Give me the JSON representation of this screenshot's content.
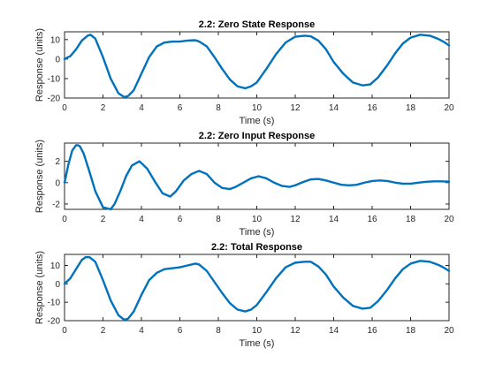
{
  "line_color": "#0072BD",
  "chart_data": [
    {
      "type": "line",
      "title": "2.2: Zero State Response",
      "xlabel": "Time (s)",
      "ylabel": "Response (units)",
      "xlim": [
        0,
        20
      ],
      "ylim": [
        -20,
        14
      ],
      "xticks": [
        0,
        2,
        4,
        6,
        8,
        10,
        12,
        14,
        16,
        18,
        20
      ],
      "yticks": [
        -20,
        -10,
        0,
        10
      ],
      "grid": false,
      "series": [
        {
          "x": [
            0,
            0.3,
            0.6,
            0.9,
            1.2,
            1.35,
            1.6,
            2.0,
            2.4,
            2.8,
            3.1,
            3.3,
            3.6,
            4.0,
            4.4,
            4.8,
            5.2,
            5.6,
            6.0,
            6.4,
            6.8,
            7.0,
            7.4,
            7.8,
            8.2,
            8.6,
            9.0,
            9.4,
            9.7,
            10.0,
            10.5,
            11.0,
            11.5,
            12.0,
            12.5,
            12.8,
            13.2,
            13.6,
            14.0,
            14.5,
            15.0,
            15.5,
            15.9,
            16.3,
            16.8,
            17.2,
            17.6,
            18.0,
            18.5,
            19.0,
            19.4,
            19.7,
            20.0
          ],
          "y": [
            0,
            1.5,
            5,
            9.5,
            12,
            12.5,
            10.5,
            1,
            -10,
            -17.5,
            -19.5,
            -19,
            -16,
            -7.5,
            1,
            6.5,
            8.5,
            9,
            9,
            9.5,
            9.7,
            9,
            6.5,
            1,
            -5,
            -10.5,
            -14,
            -15,
            -14,
            -12,
            -5,
            2.5,
            8.5,
            11.5,
            12,
            11.7,
            9.5,
            5,
            -1.5,
            -7.5,
            -12,
            -13.5,
            -13,
            -9.5,
            -3,
            3,
            8,
            11,
            12.5,
            12,
            10.5,
            9,
            7
          ]
        }
      ]
    },
    {
      "type": "line",
      "title": "2.2: Zero Input Response",
      "xlabel": "Time (s)",
      "ylabel": "Response (units)",
      "xlim": [
        0,
        20
      ],
      "ylim": [
        -2.5,
        3.7
      ],
      "xticks": [
        0,
        2,
        4,
        6,
        8,
        10,
        12,
        14,
        16,
        18,
        20
      ],
      "yticks": [
        -2,
        0,
        2
      ],
      "grid": false,
      "series": [
        {
          "x": [
            0,
            0.2,
            0.4,
            0.6,
            0.7,
            0.8,
            1.0,
            1.3,
            1.6,
            2.0,
            2.4,
            2.6,
            2.9,
            3.2,
            3.5,
            3.9,
            4.3,
            4.7,
            5.1,
            5.5,
            5.8,
            6.2,
            6.6,
            7.0,
            7.4,
            7.8,
            8.2,
            8.6,
            8.9,
            9.3,
            9.7,
            10.1,
            10.5,
            10.9,
            11.3,
            11.7,
            12.0,
            12.4,
            12.8,
            13.2,
            13.6,
            14.0,
            14.4,
            14.8,
            15.2,
            15.6,
            16.0,
            16.4,
            16.8,
            17.2,
            17.6,
            18.0,
            18.4,
            18.8,
            19.2,
            19.6,
            20.0
          ],
          "y": [
            0,
            1.7,
            3.0,
            3.5,
            3.5,
            3.4,
            2.7,
            1.0,
            -0.8,
            -2.3,
            -2.5,
            -2.0,
            -0.8,
            0.6,
            1.6,
            2.0,
            1.3,
            0.1,
            -1.0,
            -1.3,
            -0.8,
            0.2,
            0.8,
            1.1,
            0.8,
            0.0,
            -0.5,
            -0.6,
            -0.4,
            0.0,
            0.4,
            0.6,
            0.4,
            0.0,
            -0.3,
            -0.4,
            -0.25,
            0.05,
            0.3,
            0.35,
            0.2,
            0.0,
            -0.2,
            -0.25,
            -0.2,
            0.0,
            0.15,
            0.2,
            0.15,
            0.0,
            -0.1,
            -0.1,
            0.0,
            0.08,
            0.12,
            0.12,
            0.1
          ]
        }
      ]
    },
    {
      "type": "line",
      "title": "2.2: Total Response",
      "xlabel": "Time (s)",
      "ylabel": "Response (units)",
      "xlim": [
        0,
        20
      ],
      "ylim": [
        -20,
        16
      ],
      "xticks": [
        0,
        2,
        4,
        6,
        8,
        10,
        12,
        14,
        16,
        18,
        20
      ],
      "yticks": [
        -20,
        -10,
        0,
        10
      ],
      "grid": false,
      "series": [
        {
          "x": [
            0,
            0.3,
            0.6,
            0.9,
            1.1,
            1.3,
            1.6,
            2.0,
            2.4,
            2.8,
            3.1,
            3.3,
            3.6,
            4.0,
            4.4,
            4.8,
            5.2,
            5.6,
            6.0,
            6.4,
            6.8,
            7.0,
            7.4,
            7.8,
            8.2,
            8.6,
            9.0,
            9.4,
            9.7,
            10.0,
            10.5,
            11.0,
            11.5,
            12.0,
            12.5,
            12.8,
            13.2,
            13.6,
            14.0,
            14.5,
            15.0,
            15.5,
            15.9,
            16.3,
            16.8,
            17.2,
            17.6,
            18.0,
            18.5,
            19.0,
            19.4,
            19.7,
            20.0
          ],
          "y": [
            0,
            3,
            8,
            13,
            14.5,
            14.5,
            12,
            2,
            -9,
            -17,
            -19.5,
            -19,
            -15,
            -6,
            2,
            6,
            8,
            8.5,
            9,
            10,
            11,
            10.5,
            7,
            1,
            -5,
            -10.5,
            -14,
            -15,
            -14,
            -11.5,
            -4.5,
            3,
            9,
            11.5,
            12,
            12,
            9.5,
            5,
            -1.5,
            -7.5,
            -12,
            -13.5,
            -13,
            -9.5,
            -3,
            3,
            8,
            11,
            12.5,
            12,
            10.5,
            9,
            7
          ]
        }
      ]
    }
  ]
}
